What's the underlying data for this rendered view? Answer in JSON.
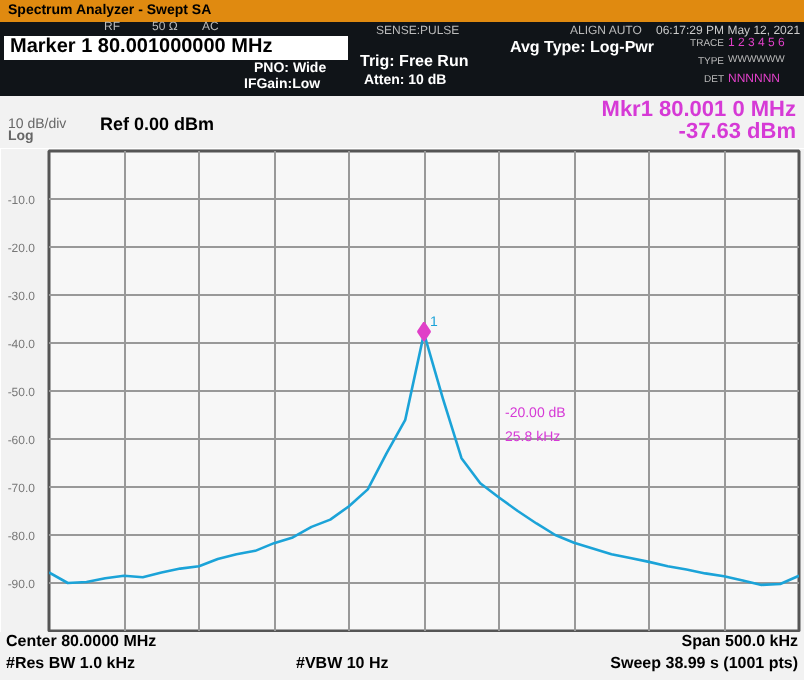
{
  "chart_data": {
    "type": "line",
    "title": "Spectrum Analyzer - Swept SA",
    "annotations": [
      "Marker 1 80.001000000 MHz",
      "RF",
      "50 Ω",
      "AC",
      "SENSE:PULSE",
      "ALIGN AUTO",
      "06:17:29 PM May 12, 2021",
      "PNO: Wide",
      "IFGain:Low",
      "Trig: Free Run",
      "Atten: 10 dB",
      "Avg Type: Log-Pwr",
      "TRACE",
      "1 2 3 4 5 6",
      "TYPE",
      "WWWWWW",
      "DET",
      "NNNNNN",
      "Mkr1 80.001 0 MHz",
      "-37.63 dBm",
      "10 dB/div",
      "Ref 0.00 dBm",
      "Log",
      "Center 80.0000 MHz",
      "Span 500.0 kHz",
      "#Res BW 1.0 kHz",
      "#VBW 10 Hz",
      "Sweep 38.99 s (1001 pts)",
      "1",
      "-20.00 dB",
      "25.8 kHz"
    ],
    "categories": [
      null,
      null,
      null,
      null,
      null,
      null,
      null,
      null,
      null,
      null,
      null,
      null,
      null,
      null,
      null,
      null,
      null,
      null,
      null,
      null,
      null,
      null,
      null,
      null,
      null,
      null,
      null,
      null,
      null,
      null,
      null,
      null,
      null,
      null,
      null,
      null,
      null,
      null,
      null,
      null,
      null
    ],
    "series": [
      {
        "type": "line",
        "color": "#1ba3d8",
        "values": [
          -87.8,
          -90.0,
          -89.8,
          -89.0,
          -88.5,
          -88.8,
          -87.8,
          -87.0,
          -86.5,
          -85.0,
          -84.0,
          -83.3,
          -81.7,
          -80.5,
          -78.3,
          -76.8,
          -74.0,
          -70.5,
          -63.0,
          -56.0,
          -38.0,
          -51.5,
          -64.0,
          -69.2,
          -72.2,
          -75.0,
          -77.6,
          -80.0,
          -81.6,
          -82.8,
          -84.0,
          -84.8,
          -85.6,
          -86.5,
          -87.2,
          -88.0,
          -88.6,
          -89.5,
          -90.4,
          -90.2,
          -88.5
        ]
      },
      {
        "type": "scatter",
        "marker": "diamond",
        "color": "#e040c8",
        "values": [
          null,
          null,
          null,
          null,
          null,
          null,
          null,
          null,
          null,
          null,
          null,
          null,
          null,
          null,
          null,
          null,
          null,
          null,
          null,
          null,
          -37.63,
          null,
          null,
          null,
          null,
          null,
          null,
          null,
          null,
          null,
          null,
          null,
          null,
          null,
          null,
          null,
          null,
          null,
          null,
          null,
          null
        ]
      }
    ],
    "ylim": [
      -100,
      0
    ],
    "yticks": [
      {
        "value": -10,
        "label": "-10.0"
      },
      {
        "value": -20,
        "label": "-20.0"
      },
      {
        "value": -30,
        "label": "-30.0"
      },
      {
        "value": -40,
        "label": "-40.0"
      },
      {
        "value": -50,
        "label": "-50.0"
      },
      {
        "value": -60,
        "label": "-60.0"
      },
      {
        "value": -70,
        "label": "-70.0"
      },
      {
        "value": -80,
        "label": "-80.0"
      },
      {
        "value": -90,
        "label": "-90.0"
      }
    ],
    "grid": true,
    "tick_labels": "y"
  }
}
